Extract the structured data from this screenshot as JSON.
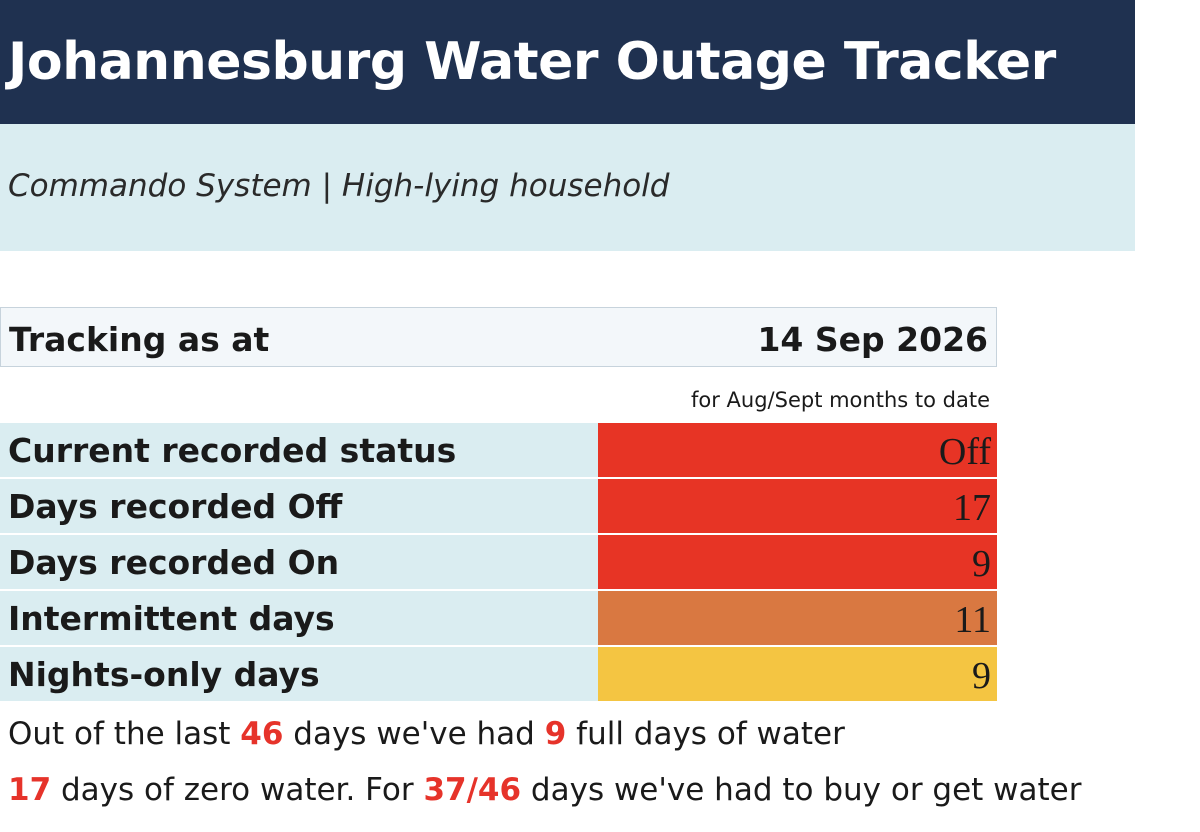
{
  "header": {
    "title": "Johannesburg Water Outage Tracker",
    "subtitle": "Commando System | High-lying household",
    "title_bg": "#1f3150",
    "subtitle_bg": "#daedf1"
  },
  "tracking": {
    "label": "Tracking as at",
    "date": "14 Sep 2026",
    "period_note": "for Aug/Sept months to date"
  },
  "stats": [
    {
      "label": "Current recorded status",
      "value": "Off",
      "color": "#e73425"
    },
    {
      "label": "Days recorded Off",
      "value": "17",
      "color": "#e73425"
    },
    {
      "label": "Days recorded On",
      "value": "9",
      "color": "#e73425"
    },
    {
      "label": "Intermittent days",
      "value": "11",
      "color": "#d97841"
    },
    {
      "label": "Nights-only days",
      "value": "9",
      "color": "#f4c542"
    }
  ],
  "summary": {
    "line1": {
      "t1": "Out of the last ",
      "n1": "46",
      "t2": " days we've had ",
      "n2": "9",
      "t3": " full days of water"
    },
    "line2": {
      "n1": "17",
      "t1": " days of zero water. For ",
      "n2": "37/46",
      "t2": " days we've had to buy or get water"
    },
    "highlight_color": "#e6332a"
  }
}
